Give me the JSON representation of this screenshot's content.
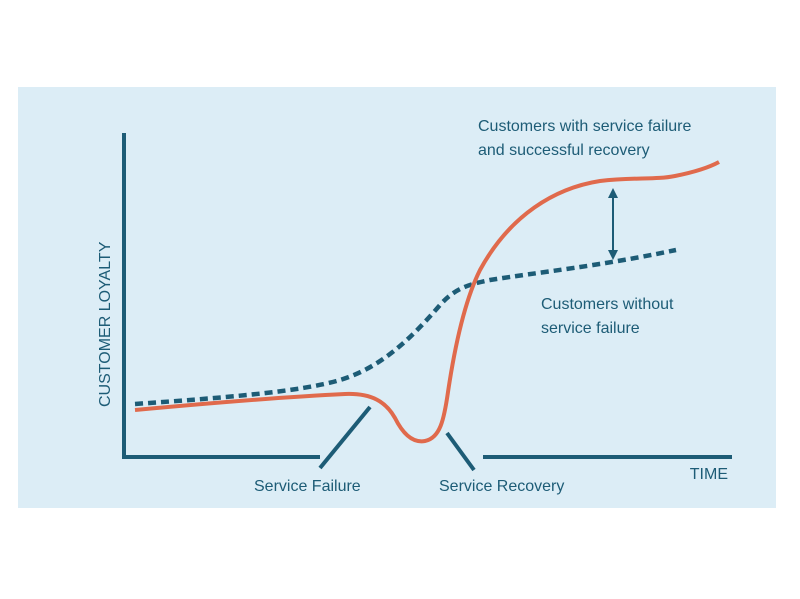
{
  "diagram": {
    "y_axis_label": "CUSTOMER LOYALTY",
    "x_axis_label": "TIME",
    "series_recovery_label_line1": "Customers with service failure",
    "series_recovery_label_line2": "and successful recovery",
    "series_no_failure_label_line1": "Customers without",
    "series_no_failure_label_line2": "service failure",
    "event_failure_label": "Service Failure",
    "event_recovery_label": "Service Recovery"
  },
  "colors": {
    "background": "#dcedf6",
    "axis": "#1d5c76",
    "solid_line": "#e06a4c",
    "dashed_line": "#1d5c76",
    "text": "#1d5c76"
  }
}
